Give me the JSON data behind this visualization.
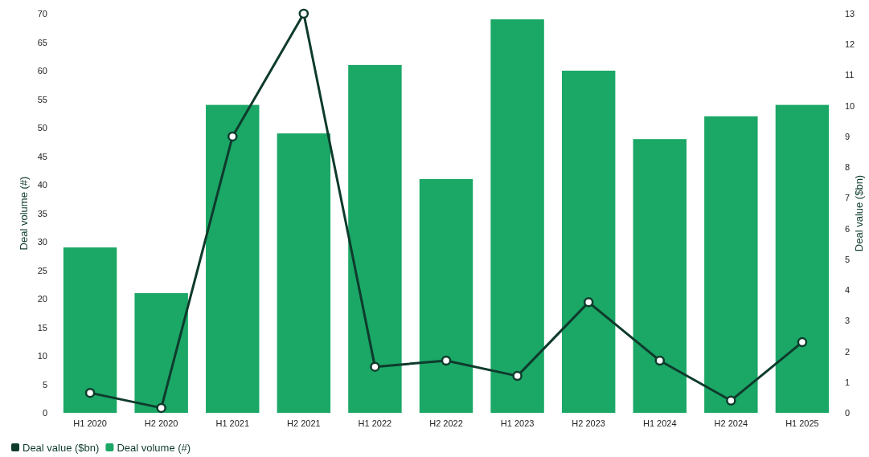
{
  "chart_data": {
    "type": "bar",
    "ylabel": "Deal volume (#)",
    "y2label": "Deal value ($bn)",
    "categories": [
      "H1 2020",
      "H2 2020",
      "H1 2021",
      "H2 2021",
      "H1 2022",
      "H2 2022",
      "H1 2023",
      "H2 2023",
      "H1 2024",
      "H2 2024",
      "H1 2025"
    ],
    "series": [
      {
        "name": "Deal value ($bn)",
        "type": "line",
        "axis": "y2",
        "color": "#0e3b2c",
        "marker": "circle",
        "values": [
          0.65,
          0.16,
          9.0,
          13,
          1.5,
          1.7,
          1.2,
          3.6,
          1.7,
          0.4,
          2.3
        ]
      },
      {
        "name": "Deal volume (#)",
        "color": "#1ba766",
        "values": [
          29,
          21,
          54,
          49,
          61,
          41,
          69,
          60,
          48,
          52,
          54
        ]
      }
    ],
    "ylim": [
      0,
      70
    ],
    "yticks": [
      0,
      5,
      10,
      15,
      20,
      25,
      30,
      35,
      40,
      45,
      50,
      55,
      60,
      65,
      70
    ],
    "y2lim": [
      0,
      13
    ],
    "y2ticks": [
      0,
      1,
      2,
      3,
      4,
      5,
      6,
      7,
      8,
      9,
      10,
      11,
      12,
      13
    ],
    "grid": false,
    "legend": "bottom left"
  }
}
